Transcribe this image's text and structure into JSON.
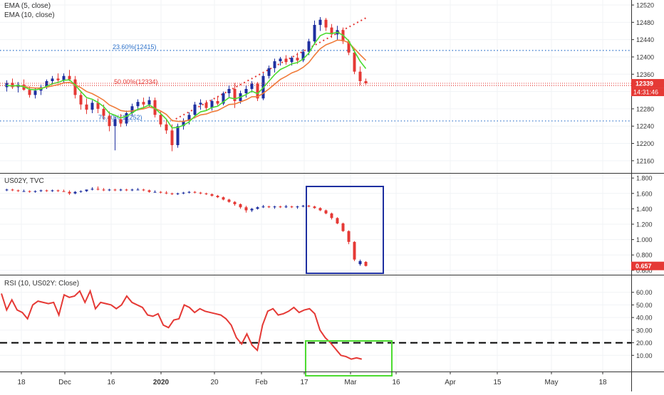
{
  "chart_data": [
    {
      "type": "candlestick",
      "panel": "price",
      "legend": [
        "EMA (5, close)",
        "EMA (10, close)"
      ],
      "ylim": [
        12140,
        12525
      ],
      "y_ticks": [
        12160,
        12200,
        12240,
        12280,
        12320,
        12360,
        12400,
        12440,
        12480,
        12520
      ],
      "fib_levels": [
        {
          "label": "23.60%(12415)",
          "value": 12415,
          "color": "#2a6fc9"
        },
        {
          "label": "50.00%(12334)",
          "value": 12334,
          "color": "#e53935"
        },
        {
          "label": "76.40%(12252)",
          "value": 12252,
          "color": "#2a6fc9"
        }
      ],
      "fib_line": {
        "from": [
          29,
          12252
        ],
        "to": [
          63,
          12490
        ],
        "color": "#e53935"
      },
      "last_price": {
        "value": 12339,
        "label": "12339",
        "time_label": "14:31:46",
        "color": "#e53935"
      },
      "candles": [
        [
          12330,
          12346,
          12320,
          12340
        ],
        [
          12340,
          12350,
          12326,
          12330
        ],
        [
          12330,
          12342,
          12318,
          12336
        ],
        [
          12336,
          12348,
          12322,
          12324
        ],
        [
          12324,
          12332,
          12306,
          12312
        ],
        [
          12312,
          12328,
          12304,
          12322
        ],
        [
          12322,
          12336,
          12312,
          12330
        ],
        [
          12330,
          12348,
          12326,
          12344
        ],
        [
          12344,
          12356,
          12336,
          12350
        ],
        [
          12350,
          12362,
          12342,
          12346
        ],
        [
          12346,
          12362,
          12340,
          12356
        ],
        [
          12356,
          12370,
          12344,
          12348
        ],
        [
          12348,
          12356,
          12304,
          12312
        ],
        [
          12312,
          12322,
          12278,
          12290
        ],
        [
          12290,
          12304,
          12268,
          12278
        ],
        [
          12278,
          12300,
          12270,
          12294
        ],
        [
          12294,
          12304,
          12270,
          12280
        ],
        [
          12280,
          12290,
          12256,
          12264
        ],
        [
          12264,
          12274,
          12228,
          12240
        ],
        [
          12240,
          12262,
          12184,
          12256
        ],
        [
          12256,
          12268,
          12238,
          12246
        ],
        [
          12246,
          12276,
          12240,
          12270
        ],
        [
          12270,
          12292,
          12262,
          12286
        ],
        [
          12286,
          12302,
          12276,
          12296
        ],
        [
          12296,
          12306,
          12280,
          12290
        ],
        [
          12290,
          12308,
          12284,
          12300
        ],
        [
          12300,
          12306,
          12260,
          12266
        ],
        [
          12266,
          12274,
          12238,
          12244
        ],
        [
          12244,
          12256,
          12222,
          12230
        ],
        [
          12230,
          12244,
          12182,
          12196
        ],
        [
          12196,
          12246,
          12190,
          12240
        ],
        [
          12240,
          12258,
          12232,
          12252
        ],
        [
          12252,
          12272,
          12244,
          12266
        ],
        [
          12266,
          12296,
          12258,
          12290
        ],
        [
          12290,
          12302,
          12278,
          12294
        ],
        [
          12294,
          12300,
          12276,
          12282
        ],
        [
          12282,
          12302,
          12276,
          12298
        ],
        [
          12298,
          12308,
          12288,
          12292
        ],
        [
          12292,
          12320,
          12288,
          12316
        ],
        [
          12316,
          12334,
          12306,
          12326
        ],
        [
          12326,
          12340,
          12282,
          12298
        ],
        [
          12298,
          12322,
          12292,
          12316
        ],
        [
          12316,
          12334,
          12306,
          12326
        ],
        [
          12326,
          12344,
          12318,
          12338
        ],
        [
          12338,
          12342,
          12298,
          12304
        ],
        [
          12304,
          12362,
          12300,
          12356
        ],
        [
          12356,
          12380,
          12350,
          12374
        ],
        [
          12374,
          12396,
          12364,
          12390
        ],
        [
          12390,
          12400,
          12380,
          12396
        ],
        [
          12396,
          12404,
          12382,
          12388
        ],
        [
          12388,
          12402,
          12380,
          12398
        ],
        [
          12398,
          12410,
          12384,
          12392
        ],
        [
          12392,
          12418,
          12388,
          12412
        ],
        [
          12412,
          12442,
          12404,
          12436
        ],
        [
          12436,
          12484,
          12428,
          12474
        ],
        [
          12474,
          12492,
          12460,
          12486
        ],
        [
          12486,
          12490,
          12460,
          12468
        ],
        [
          12468,
          12476,
          12444,
          12452
        ],
        [
          12452,
          12472,
          12440,
          12462
        ],
        [
          12462,
          12468,
          12430,
          12436
        ],
        [
          12436,
          12440,
          12404,
          12410
        ],
        [
          12410,
          12420,
          12360,
          12366
        ],
        [
          12366,
          12378,
          12334,
          12344
        ],
        [
          12344,
          12350,
          12336,
          12339
        ]
      ],
      "ema5": [
        12334,
        12333,
        12334,
        12331,
        12325,
        12324,
        12326,
        12332,
        12338,
        12341,
        12346,
        12347,
        12335,
        12320,
        12306,
        12302,
        12295,
        12285,
        12270,
        12265,
        12259,
        12263,
        12271,
        12279,
        12283,
        12289,
        12281,
        12269,
        12256,
        12236,
        12237,
        12242,
        12250,
        12263,
        12273,
        12276,
        12283,
        12286,
        12296,
        12306,
        12303,
        12307,
        12313,
        12321,
        12315,
        12329,
        12344,
        12359,
        12371,
        12377,
        12384,
        12387,
        12395,
        12409,
        12431,
        12449,
        12455,
        12454,
        12457,
        12450,
        12437,
        12413,
        12390,
        12373
      ],
      "ema10": [
        12334,
        12333,
        12333,
        12332,
        12329,
        12328,
        12328,
        12330,
        12333,
        12336,
        12340,
        12341,
        12336,
        12329,
        12320,
        12315,
        12308,
        12300,
        12289,
        12283,
        12276,
        12274,
        12275,
        12278,
        12280,
        12284,
        12281,
        12275,
        12267,
        12253,
        12251,
        12251,
        12254,
        12260,
        12266,
        12268,
        12273,
        12276,
        12283,
        12290,
        12291,
        12296,
        12301,
        12308,
        12308,
        12316,
        12326,
        12337,
        12348,
        12355,
        12363,
        12368,
        12376,
        12387,
        12404,
        12419,
        12428,
        12433,
        12439,
        12438,
        12433,
        12419,
        12405,
        12392
      ]
    },
    {
      "type": "candlestick",
      "panel": "us02y",
      "legend": [
        "US02Y, TVC"
      ],
      "ylim": [
        0.58,
        1.82
      ],
      "y_ticks": [
        "0.600",
        "0.800",
        "1.000",
        "1.200",
        "1.400",
        "1.600",
        "1.800"
      ],
      "last_value": {
        "value": 0.657,
        "label": "0.657",
        "color": "#e53935"
      },
      "candles": [
        [
          1.64,
          1.66,
          1.63,
          1.65
        ],
        [
          1.65,
          1.66,
          1.63,
          1.64
        ],
        [
          1.64,
          1.65,
          1.62,
          1.63
        ],
        [
          1.63,
          1.65,
          1.62,
          1.63
        ],
        [
          1.63,
          1.64,
          1.61,
          1.62
        ],
        [
          1.62,
          1.64,
          1.61,
          1.63
        ],
        [
          1.63,
          1.65,
          1.62,
          1.64
        ],
        [
          1.64,
          1.65,
          1.62,
          1.63
        ],
        [
          1.63,
          1.65,
          1.62,
          1.64
        ],
        [
          1.64,
          1.65,
          1.62,
          1.63
        ],
        [
          1.63,
          1.65,
          1.62,
          1.62
        ],
        [
          1.62,
          1.64,
          1.58,
          1.6
        ],
        [
          1.6,
          1.63,
          1.59,
          1.62
        ],
        [
          1.62,
          1.64,
          1.61,
          1.63
        ],
        [
          1.63,
          1.65,
          1.62,
          1.65
        ],
        [
          1.65,
          1.68,
          1.64,
          1.66
        ],
        [
          1.66,
          1.69,
          1.64,
          1.65
        ],
        [
          1.65,
          1.67,
          1.63,
          1.64
        ],
        [
          1.64,
          1.66,
          1.63,
          1.65
        ],
        [
          1.65,
          1.66,
          1.63,
          1.64
        ],
        [
          1.64,
          1.66,
          1.63,
          1.65
        ],
        [
          1.65,
          1.66,
          1.63,
          1.64
        ],
        [
          1.64,
          1.66,
          1.63,
          1.65
        ],
        [
          1.65,
          1.67,
          1.64,
          1.65
        ],
        [
          1.65,
          1.66,
          1.63,
          1.64
        ],
        [
          1.64,
          1.65,
          1.61,
          1.62
        ],
        [
          1.62,
          1.64,
          1.61,
          1.62
        ],
        [
          1.62,
          1.63,
          1.6,
          1.61
        ],
        [
          1.61,
          1.63,
          1.59,
          1.6
        ],
        [
          1.6,
          1.61,
          1.58,
          1.59
        ],
        [
          1.59,
          1.61,
          1.58,
          1.6
        ],
        [
          1.6,
          1.62,
          1.59,
          1.61
        ],
        [
          1.61,
          1.63,
          1.6,
          1.62
        ],
        [
          1.62,
          1.63,
          1.6,
          1.61
        ],
        [
          1.61,
          1.62,
          1.59,
          1.6
        ],
        [
          1.6,
          1.61,
          1.58,
          1.59
        ],
        [
          1.59,
          1.6,
          1.56,
          1.57
        ],
        [
          1.57,
          1.58,
          1.54,
          1.55
        ],
        [
          1.55,
          1.56,
          1.51,
          1.52
        ],
        [
          1.52,
          1.53,
          1.48,
          1.49
        ],
        [
          1.49,
          1.5,
          1.44,
          1.46
        ],
        [
          1.46,
          1.47,
          1.4,
          1.42
        ],
        [
          1.42,
          1.44,
          1.35,
          1.38
        ],
        [
          1.38,
          1.41,
          1.36,
          1.4
        ],
        [
          1.4,
          1.43,
          1.39,
          1.42
        ],
        [
          1.42,
          1.45,
          1.41,
          1.43
        ],
        [
          1.43,
          1.44,
          1.41,
          1.42
        ],
        [
          1.42,
          1.44,
          1.4,
          1.43
        ],
        [
          1.43,
          1.44,
          1.41,
          1.42
        ],
        [
          1.42,
          1.45,
          1.41,
          1.43
        ],
        [
          1.43,
          1.44,
          1.41,
          1.42
        ],
        [
          1.42,
          1.44,
          1.4,
          1.43
        ],
        [
          1.43,
          1.45,
          1.42,
          1.44
        ],
        [
          1.44,
          1.45,
          1.42,
          1.43
        ],
        [
          1.43,
          1.44,
          1.4,
          1.41
        ],
        [
          1.41,
          1.42,
          1.37,
          1.38
        ],
        [
          1.38,
          1.39,
          1.33,
          1.34
        ],
        [
          1.34,
          1.35,
          1.26,
          1.28
        ],
        [
          1.28,
          1.29,
          1.2,
          1.21
        ],
        [
          1.21,
          1.22,
          1.1,
          1.11
        ],
        [
          1.11,
          1.12,
          0.94,
          0.97
        ],
        [
          0.97,
          0.98,
          0.72,
          0.74
        ],
        [
          0.68,
          0.74,
          0.66,
          0.72
        ],
        [
          0.71,
          0.72,
          0.65,
          0.657
        ]
      ]
    },
    {
      "type": "line",
      "panel": "rsi",
      "legend": [
        "RSI (10, US02Y: Close)"
      ],
      "ylim": [
        0,
        70
      ],
      "y_ticks": [
        "10.00",
        "20.00",
        "30.00",
        "40.00",
        "50.00",
        "60.00"
      ],
      "reference_line": 20,
      "values": [
        59,
        46,
        54,
        46,
        44,
        39,
        50,
        53,
        52,
        51,
        52,
        42,
        58,
        56,
        57,
        61,
        52,
        61,
        47,
        52,
        51,
        50,
        47,
        50,
        57,
        52,
        50,
        48,
        42,
        41,
        43,
        34,
        32,
        38,
        39,
        50,
        48,
        44,
        47,
        45,
        44,
        43,
        42,
        39,
        34,
        24,
        19,
        27,
        18,
        14,
        34,
        45,
        47,
        42,
        43,
        45,
        48,
        44,
        46,
        47,
        43,
        30,
        24,
        20,
        15,
        10,
        9,
        7,
        8,
        7
      ]
    }
  ],
  "x_axis": {
    "labels": [
      "18",
      "Dec",
      "16",
      "2020",
      "20",
      "Feb",
      "17",
      "Mar",
      "16",
      "Apr",
      "15",
      "May",
      "18"
    ]
  },
  "annotations": {
    "us02y_box_color": "#1e2fa0",
    "rsi_box_color": "#4cdb30"
  },
  "colors": {
    "up": "#1e2fa0",
    "down": "#e53935",
    "ema5": "#4cdb30",
    "ema10": "#f07c3a",
    "rsi": "#e53935"
  }
}
